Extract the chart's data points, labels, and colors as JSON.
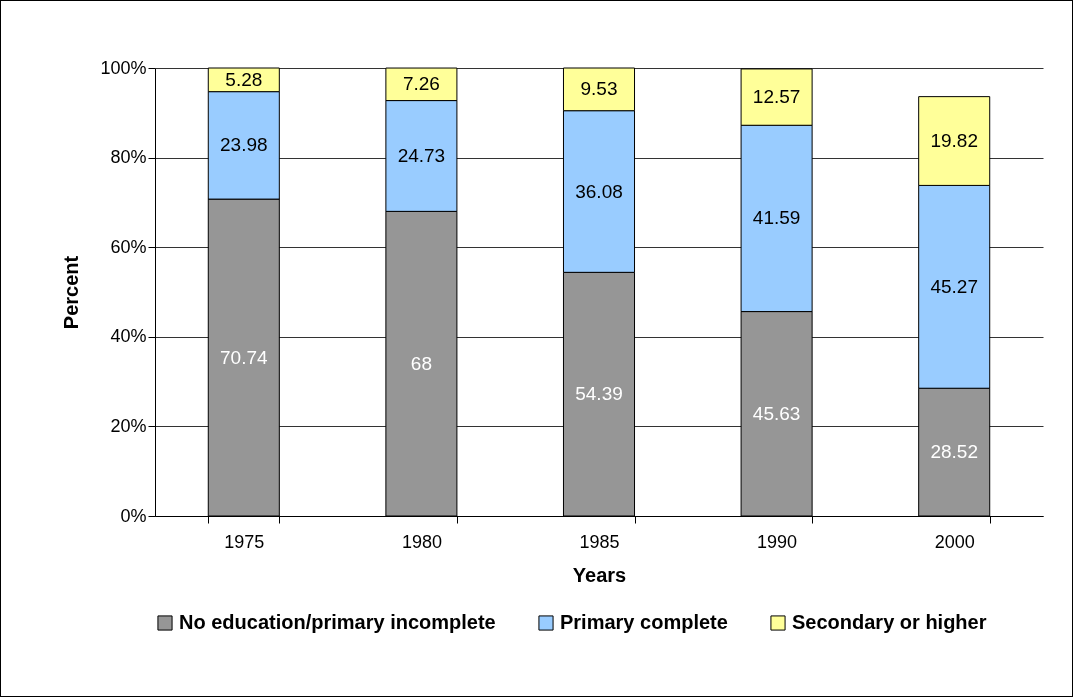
{
  "chart_data": {
    "type": "bar",
    "stacked": true,
    "xlabel": "Years",
    "ylabel": "Percent",
    "categories": [
      "1975",
      "1980",
      "1985",
      "1990",
      "2000"
    ],
    "series": [
      {
        "name": "No education/primary incomplete",
        "color": "#969696",
        "values": [
          70.74,
          68,
          54.39,
          45.63,
          28.52
        ]
      },
      {
        "name": "Primary complete",
        "color": "#99ccff",
        "values": [
          23.98,
          24.73,
          36.08,
          41.59,
          45.27
        ]
      },
      {
        "name": "Secondary or higher",
        "color": "#ffff99",
        "values": [
          5.28,
          7.26,
          9.53,
          12.57,
          19.82
        ]
      }
    ],
    "ylim": [
      0,
      100
    ],
    "yticks": [
      {
        "value": 0,
        "label": "0%"
      },
      {
        "value": 20,
        "label": "20%"
      },
      {
        "value": 40,
        "label": "40%"
      },
      {
        "value": 60,
        "label": "60%"
      },
      {
        "value": 80,
        "label": "80%"
      },
      {
        "value": 100,
        "label": "100%"
      }
    ],
    "grid": "y",
    "legend": "bottom",
    "data_labels": true
  }
}
